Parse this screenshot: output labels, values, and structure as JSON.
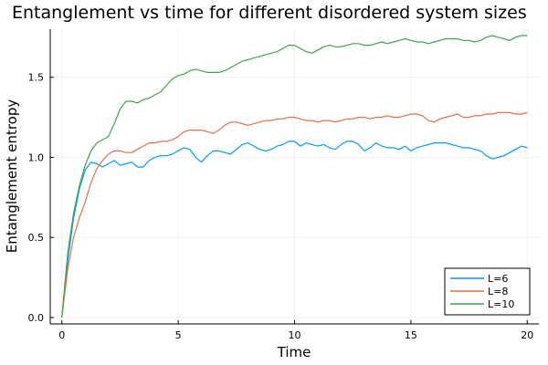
{
  "chart_data": {
    "type": "line",
    "title": "Entanglement vs time for different disordered system sizes",
    "xlabel": "Time",
    "ylabel": "Entanglement entropy",
    "xlim": [
      -0.5,
      20.5
    ],
    "ylim": [
      -0.04,
      1.8
    ],
    "xticks": [
      0,
      5,
      10,
      15,
      20
    ],
    "xtick_labels": [
      "0",
      "5",
      "10",
      "15",
      "20"
    ],
    "yticks": [
      0.0,
      0.5,
      1.0,
      1.5
    ],
    "ytick_labels": [
      "0.0",
      "0.5",
      "1.0",
      "1.5"
    ],
    "grid": true,
    "legend_position": "bottom-right",
    "x": [
      0.0,
      0.25,
      0.5,
      0.75,
      1.0,
      1.25,
      1.5,
      1.75,
      2.0,
      2.25,
      2.5,
      2.75,
      3.0,
      3.25,
      3.5,
      3.75,
      4.0,
      4.25,
      4.5,
      4.75,
      5.0,
      5.25,
      5.5,
      5.75,
      6.0,
      6.25,
      6.5,
      6.75,
      7.0,
      7.25,
      7.5,
      7.75,
      8.0,
      8.25,
      8.5,
      8.75,
      9.0,
      9.25,
      9.5,
      9.75,
      10.0,
      10.25,
      10.5,
      10.75,
      11.0,
      11.25,
      11.5,
      11.75,
      12.0,
      12.25,
      12.5,
      12.75,
      13.0,
      13.25,
      13.5,
      13.75,
      14.0,
      14.25,
      14.5,
      14.75,
      15.0,
      15.25,
      15.5,
      15.75,
      16.0,
      16.25,
      16.5,
      16.75,
      17.0,
      17.25,
      17.5,
      17.75,
      18.0,
      18.25,
      18.5,
      18.75,
      19.0,
      19.25,
      19.5,
      19.75,
      20.0
    ],
    "series": [
      {
        "name": "L=6",
        "color": "#009af9",
        "values": [
          0.0,
          0.35,
          0.62,
          0.8,
          0.92,
          0.97,
          0.96,
          0.94,
          0.96,
          0.98,
          0.95,
          0.96,
          0.97,
          0.94,
          0.94,
          0.98,
          1.0,
          1.01,
          1.01,
          1.02,
          1.04,
          1.06,
          1.05,
          1.0,
          0.97,
          1.01,
          1.04,
          1.04,
          1.03,
          1.02,
          1.05,
          1.08,
          1.09,
          1.07,
          1.05,
          1.04,
          1.05,
          1.07,
          1.08,
          1.1,
          1.1,
          1.07,
          1.09,
          1.08,
          1.07,
          1.08,
          1.06,
          1.05,
          1.08,
          1.1,
          1.1,
          1.08,
          1.04,
          1.06,
          1.09,
          1.07,
          1.06,
          1.06,
          1.05,
          1.07,
          1.04,
          1.06,
          1.07,
          1.08,
          1.09,
          1.09,
          1.09,
          1.08,
          1.07,
          1.06,
          1.06,
          1.05,
          1.04,
          1.01,
          0.99,
          1.0,
          1.01,
          1.03,
          1.05,
          1.07,
          1.06
        ]
      },
      {
        "name": "L=8",
        "color": "#e26f46",
        "values": [
          0.0,
          0.3,
          0.5,
          0.62,
          0.72,
          0.84,
          0.93,
          0.98,
          1.02,
          1.04,
          1.04,
          1.03,
          1.03,
          1.05,
          1.07,
          1.09,
          1.09,
          1.1,
          1.1,
          1.11,
          1.13,
          1.16,
          1.17,
          1.17,
          1.17,
          1.16,
          1.15,
          1.17,
          1.2,
          1.22,
          1.22,
          1.21,
          1.2,
          1.21,
          1.22,
          1.23,
          1.23,
          1.24,
          1.24,
          1.25,
          1.25,
          1.24,
          1.23,
          1.23,
          1.22,
          1.23,
          1.23,
          1.22,
          1.23,
          1.24,
          1.24,
          1.25,
          1.25,
          1.24,
          1.25,
          1.25,
          1.26,
          1.25,
          1.25,
          1.26,
          1.27,
          1.27,
          1.26,
          1.23,
          1.22,
          1.24,
          1.25,
          1.26,
          1.27,
          1.25,
          1.25,
          1.26,
          1.26,
          1.27,
          1.27,
          1.28,
          1.28,
          1.28,
          1.27,
          1.27,
          1.28
        ]
      },
      {
        "name": "L=10",
        "color": "#3da44d",
        "values": [
          0.0,
          0.4,
          0.65,
          0.82,
          0.95,
          1.04,
          1.09,
          1.11,
          1.13,
          1.21,
          1.3,
          1.35,
          1.35,
          1.34,
          1.36,
          1.37,
          1.39,
          1.41,
          1.45,
          1.49,
          1.51,
          1.52,
          1.54,
          1.55,
          1.54,
          1.53,
          1.53,
          1.53,
          1.54,
          1.56,
          1.58,
          1.6,
          1.61,
          1.62,
          1.63,
          1.64,
          1.65,
          1.66,
          1.68,
          1.7,
          1.7,
          1.68,
          1.66,
          1.65,
          1.67,
          1.69,
          1.7,
          1.69,
          1.69,
          1.7,
          1.71,
          1.71,
          1.7,
          1.7,
          1.71,
          1.72,
          1.71,
          1.72,
          1.73,
          1.74,
          1.73,
          1.72,
          1.72,
          1.71,
          1.72,
          1.73,
          1.74,
          1.74,
          1.74,
          1.73,
          1.73,
          1.72,
          1.73,
          1.75,
          1.76,
          1.75,
          1.74,
          1.73,
          1.75,
          1.76,
          1.76
        ]
      }
    ]
  }
}
